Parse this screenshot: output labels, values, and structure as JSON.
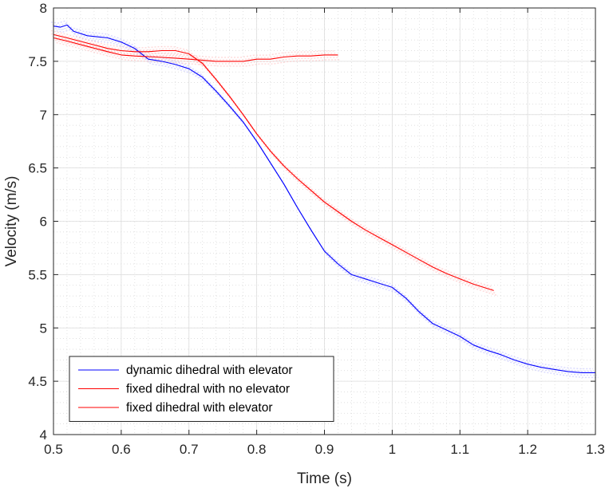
{
  "chart_data": {
    "type": "line",
    "title": "",
    "xlabel": "Time (s)",
    "ylabel": "Velocity (m/s)",
    "xlim": [
      0.5,
      1.3
    ],
    "ylim": [
      4,
      8
    ],
    "xticks": [
      0.5,
      0.6,
      0.7,
      0.8,
      0.9,
      1,
      1.1,
      1.2,
      1.3
    ],
    "xtick_labels": [
      "0.5",
      "0.6",
      "0.7",
      "0.8",
      "0.9",
      "1",
      "1.1",
      "1.2",
      "1.3"
    ],
    "yticks": [
      4,
      4.5,
      5,
      5.5,
      6,
      6.5,
      7,
      7.5,
      8
    ],
    "ytick_labels": [
      "4",
      "4.5",
      "5",
      "5.5",
      "6",
      "6.5",
      "7",
      "7.5",
      "8"
    ],
    "grid": true,
    "minor_grid": true,
    "legend_position": "bottom-left",
    "series": [
      {
        "name": "dynamic dihedral with elevator",
        "color": "#0000ff",
        "x": [
          0.5,
          0.51,
          0.52,
          0.53,
          0.55,
          0.58,
          0.6,
          0.62,
          0.64,
          0.66,
          0.68,
          0.7,
          0.72,
          0.74,
          0.76,
          0.78,
          0.8,
          0.82,
          0.84,
          0.86,
          0.88,
          0.9,
          0.92,
          0.94,
          0.96,
          0.98,
          1.0,
          1.02,
          1.04,
          1.06,
          1.08,
          1.1,
          1.12,
          1.14,
          1.16,
          1.18,
          1.2,
          1.22,
          1.24,
          1.26,
          1.28,
          1.3
        ],
        "y": [
          7.83,
          7.82,
          7.84,
          7.78,
          7.74,
          7.72,
          7.68,
          7.62,
          7.52,
          7.5,
          7.47,
          7.43,
          7.35,
          7.22,
          7.08,
          6.93,
          6.75,
          6.55,
          6.35,
          6.13,
          5.92,
          5.72,
          5.6,
          5.5,
          5.46,
          5.42,
          5.38,
          5.28,
          5.15,
          5.04,
          4.98,
          4.92,
          4.84,
          4.79,
          4.75,
          4.7,
          4.66,
          4.63,
          4.61,
          4.59,
          4.58,
          4.58
        ]
      },
      {
        "name": "fixed dihedral with no elevator",
        "color": "#ff0000",
        "x": [
          0.5,
          0.52,
          0.55,
          0.58,
          0.6,
          0.62,
          0.64,
          0.66,
          0.68,
          0.7,
          0.72,
          0.74,
          0.76,
          0.78,
          0.8,
          0.82,
          0.84,
          0.86,
          0.88,
          0.9,
          0.92,
          0.94,
          0.96,
          0.98,
          1.0,
          1.02,
          1.04,
          1.06,
          1.08,
          1.1,
          1.12,
          1.15
        ],
        "y": [
          7.75,
          7.72,
          7.67,
          7.62,
          7.6,
          7.59,
          7.59,
          7.6,
          7.6,
          7.57,
          7.48,
          7.33,
          7.17,
          7.0,
          6.82,
          6.66,
          6.52,
          6.4,
          6.29,
          6.18,
          6.09,
          6.0,
          5.92,
          5.85,
          5.78,
          5.71,
          5.64,
          5.57,
          5.51,
          5.46,
          5.41,
          5.35
        ]
      },
      {
        "name": "fixed dihedral with elevator",
        "color": "#ff0000",
        "x": [
          0.5,
          0.52,
          0.55,
          0.58,
          0.6,
          0.62,
          0.65,
          0.68,
          0.7,
          0.72,
          0.74,
          0.76,
          0.78,
          0.8,
          0.82,
          0.84,
          0.86,
          0.88,
          0.9,
          0.92
        ],
        "y": [
          7.72,
          7.69,
          7.64,
          7.59,
          7.56,
          7.55,
          7.54,
          7.53,
          7.52,
          7.51,
          7.5,
          7.5,
          7.5,
          7.52,
          7.52,
          7.54,
          7.55,
          7.55,
          7.56,
          7.56
        ]
      }
    ]
  }
}
